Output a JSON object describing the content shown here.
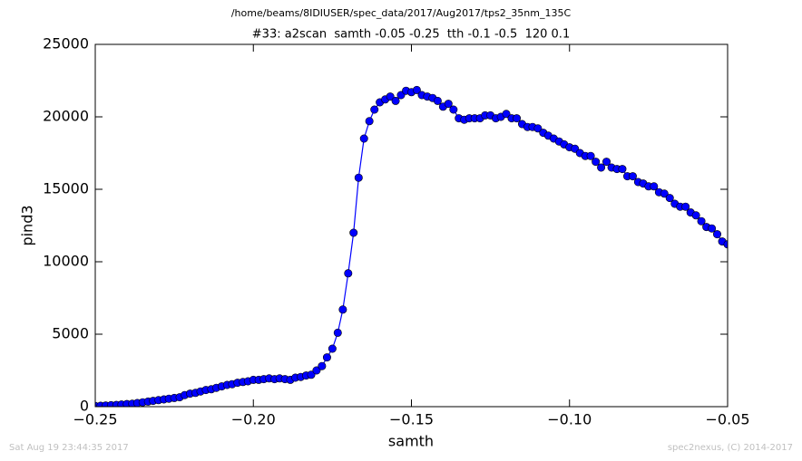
{
  "chart_data": {
    "type": "line",
    "suptitle": "/home/beams/8IDIUSER/spec_data/2017/Aug2017/tps2_35nm_135C",
    "title": "#33: a2scan  samth -0.05 -0.25  tth -0.1 -0.5  120 0.1",
    "x_label": "samth",
    "y_label": "pind3",
    "x": [
      -0.25,
      -0.2483,
      -0.2467,
      -0.245,
      -0.2433,
      -0.2417,
      -0.24,
      -0.2383,
      -0.2367,
      -0.235,
      -0.2333,
      -0.2317,
      -0.23,
      -0.2283,
      -0.2267,
      -0.225,
      -0.2233,
      -0.2217,
      -0.22,
      -0.2183,
      -0.2167,
      -0.215,
      -0.2133,
      -0.2117,
      -0.21,
      -0.2083,
      -0.2067,
      -0.205,
      -0.2033,
      -0.2017,
      -0.2,
      -0.1983,
      -0.1967,
      -0.195,
      -0.1933,
      -0.1917,
      -0.19,
      -0.1883,
      -0.1867,
      -0.185,
      -0.1833,
      -0.1817,
      -0.18,
      -0.1783,
      -0.1767,
      -0.175,
      -0.1733,
      -0.1717,
      -0.17,
      -0.1683,
      -0.1667,
      -0.165,
      -0.1633,
      -0.1617,
      -0.16,
      -0.1583,
      -0.1567,
      -0.155,
      -0.1533,
      -0.1517,
      -0.15,
      -0.1483,
      -0.1467,
      -0.145,
      -0.1433,
      -0.1417,
      -0.14,
      -0.1383,
      -0.1367,
      -0.135,
      -0.1333,
      -0.1317,
      -0.13,
      -0.1283,
      -0.1267,
      -0.125,
      -0.1233,
      -0.1217,
      -0.12,
      -0.1183,
      -0.1167,
      -0.115,
      -0.1133,
      -0.1117,
      -0.11,
      -0.1083,
      -0.1067,
      -0.105,
      -0.1033,
      -0.1017,
      -0.1,
      -0.0983,
      -0.0967,
      -0.095,
      -0.0933,
      -0.0917,
      -0.09,
      -0.0883,
      -0.0867,
      -0.085,
      -0.0833,
      -0.0817,
      -0.08,
      -0.0783,
      -0.0767,
      -0.075,
      -0.0733,
      -0.0717,
      -0.07,
      -0.0683,
      -0.0667,
      -0.065,
      -0.0633,
      -0.0617,
      -0.06,
      -0.0583,
      -0.0567,
      -0.055,
      -0.0533,
      -0.0517,
      -0.05
    ],
    "series": [
      {
        "color": "#0000ff",
        "values": [
          50,
          60,
          80,
          100,
          120,
          150,
          180,
          200,
          250,
          300,
          350,
          400,
          450,
          500,
          550,
          600,
          650,
          800,
          900,
          950,
          1050,
          1150,
          1200,
          1300,
          1400,
          1500,
          1550,
          1650,
          1700,
          1750,
          1850,
          1850,
          1900,
          1950,
          1900,
          1950,
          1900,
          1850,
          2000,
          2050,
          2150,
          2200,
          2500,
          2800,
          3400,
          4000,
          5100,
          6700,
          9200,
          12000,
          15800,
          18500,
          19700,
          20500,
          21000,
          21200,
          21400,
          21100,
          21500,
          21800,
          21700,
          21850,
          21500,
          21400,
          21300,
          21100,
          20700,
          20900,
          20500,
          19900,
          19800,
          19900,
          19900,
          19900,
          20100,
          20100,
          19900,
          20000,
          20200,
          19900,
          19900,
          19500,
          19300,
          19300,
          19200,
          18900,
          18700,
          18500,
          18300,
          18100,
          17900,
          17800,
          17500,
          17300,
          17300,
          16900,
          16500,
          16900,
          16500,
          16400,
          16400,
          15900,
          15900,
          15500,
          15400,
          15200,
          15200,
          14800,
          14700,
          14400,
          14000,
          13800,
          13800,
          13400,
          13200,
          12800,
          12400,
          12300,
          11900,
          11400,
          11200
        ]
      }
    ],
    "markers": true,
    "xlim": [
      -0.25,
      -0.05
    ],
    "xticks": [
      {
        "value": -0.25,
        "label": "−0.25"
      },
      {
        "value": -0.2,
        "label": "−0.20"
      },
      {
        "value": -0.15,
        "label": "−0.15"
      },
      {
        "value": -0.1,
        "label": "−0.10"
      },
      {
        "value": -0.05,
        "label": "−0.05"
      }
    ],
    "ylim": [
      0,
      25000
    ],
    "yticks": [
      0,
      5000,
      10000,
      15000,
      20000,
      25000
    ],
    "grid": false
  },
  "footer": {
    "left": "Sat Aug 19 23:44:35 2017",
    "right": "spec2nexus, (C) 2014-2017"
  }
}
